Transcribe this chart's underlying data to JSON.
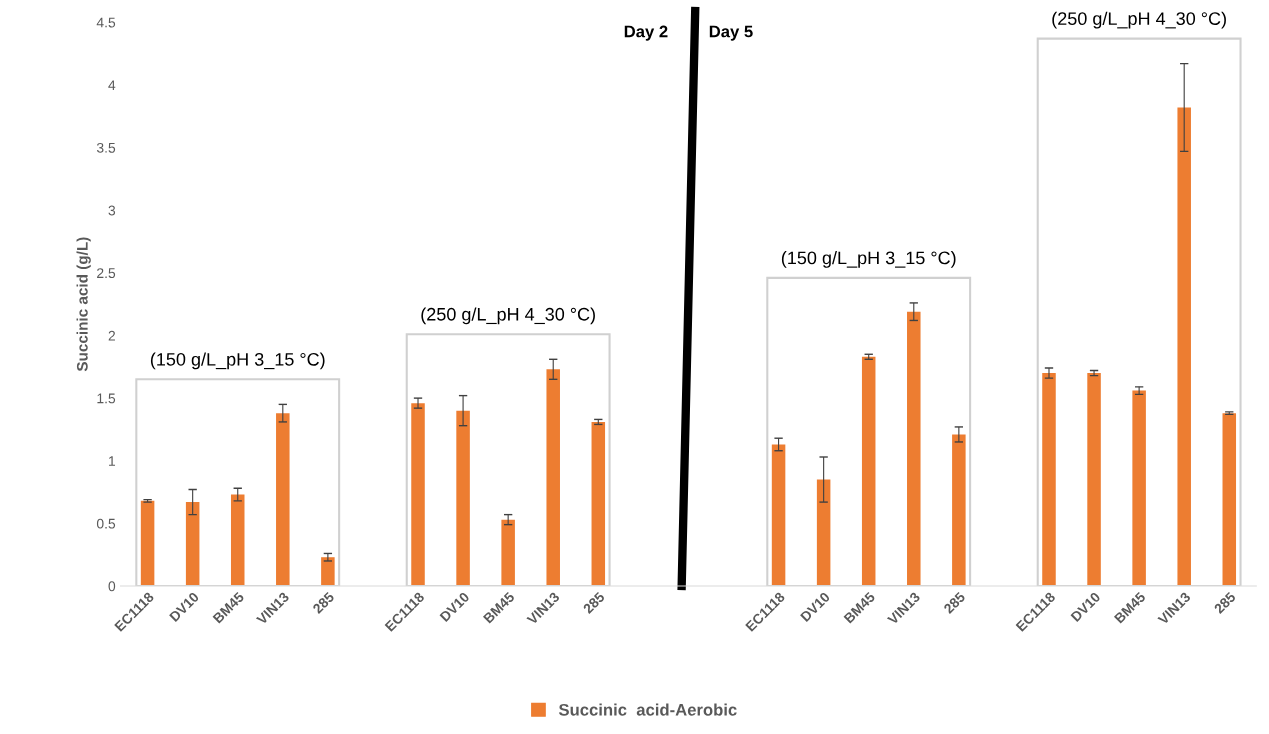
{
  "chart_data": {
    "type": "bar",
    "ylabel": "Succinic acid (g/L)",
    "categories": [
      "EC1118",
      "DV10",
      "BM45",
      "VIN13",
      "285",
      null,
      "EC1118",
      "DV10",
      "BM45",
      "VIN13",
      "285",
      null,
      null,
      null,
      "EC1118",
      "DV10",
      "BM45",
      "VIN13",
      "285",
      null,
      "EC1118",
      "DV10",
      "BM45",
      "VIN13",
      "285"
    ],
    "series": [
      {
        "name": "Succinic  acid-Aerobic",
        "color": "#ed7d31",
        "values": [
          0.68,
          0.67,
          0.73,
          1.38,
          0.23,
          null,
          1.46,
          1.4,
          0.53,
          1.73,
          1.31,
          null,
          null,
          null,
          1.13,
          0.85,
          1.83,
          2.19,
          1.21,
          null,
          1.7,
          1.7,
          1.56,
          3.82,
          1.38
        ],
        "errors": [
          0.01,
          0.1,
          0.05,
          0.07,
          0.03,
          null,
          0.04,
          0.12,
          0.04,
          0.08,
          0.02,
          null,
          null,
          null,
          0.05,
          0.18,
          0.02,
          0.07,
          0.06,
          null,
          0.04,
          0.02,
          0.03,
          0.35,
          0.01
        ]
      }
    ],
    "ylim": [
      0,
      4.5
    ],
    "yticks": [
      0,
      0.5,
      1,
      1.5,
      2,
      2.5,
      3,
      3.5,
      4,
      4.5
    ],
    "annotations": [
      "(150 g/L_pH 3_15 °C)",
      "(250 g/L_pH 4_30 °C)",
      "(150 g/L_pH 3_15 °C)",
      "(250 g/L_pH 4_30 °C)",
      "Day 2",
      "Day 5"
    ],
    "grid": false,
    "legend": "bottom"
  }
}
